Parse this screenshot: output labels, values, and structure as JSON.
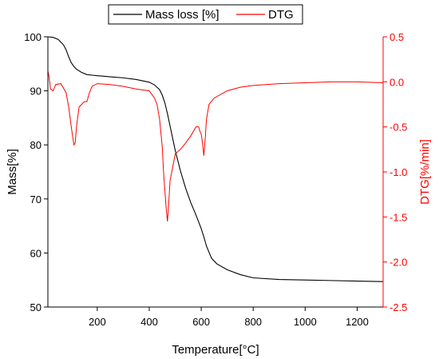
{
  "chart_data": {
    "type": "line",
    "xlabel": "Temperature[°C]",
    "x_ticks": [
      200,
      400,
      600,
      800,
      1000,
      1200
    ],
    "xlim": [
      10,
      1300
    ],
    "left_axis": {
      "label": "Mass[%]",
      "ylim": [
        50,
        100
      ],
      "ticks": [
        50,
        60,
        70,
        80,
        90,
        100
      ],
      "color": "#000000"
    },
    "right_axis": {
      "label": "DTG[%/min]",
      "ylim": [
        -2.5,
        0.5
      ],
      "ticks": [
        -2.5,
        -2.0,
        -1.5,
        -1.0,
        -0.5,
        0.0,
        0.5
      ],
      "tick_labels": [
        "-2.5",
        "-2.0",
        "-1.5",
        "-1.0",
        "-0.5",
        "0.0",
        "0.5"
      ],
      "color": "#ff0000"
    },
    "legend_position": "top-center",
    "grid": false,
    "series": [
      {
        "name": "Mass loss [%]",
        "axis": "left",
        "color": "#000000",
        "x": [
          10,
          30,
          50,
          70,
          80,
          90,
          100,
          110,
          120,
          140,
          160,
          180,
          200,
          250,
          300,
          350,
          400,
          420,
          440,
          450,
          460,
          470,
          480,
          500,
          520,
          540,
          560,
          580,
          600,
          610,
          620,
          640,
          660,
          700,
          750,
          800,
          900,
          1000,
          1100,
          1200,
          1300
        ],
        "y": [
          100,
          99.9,
          99.5,
          98.5,
          97.6,
          96.3,
          95.2,
          94.5,
          94.0,
          93.4,
          93.0,
          92.9,
          92.8,
          92.6,
          92.4,
          92.1,
          91.6,
          91.1,
          90.2,
          89.2,
          87.8,
          85.8,
          83.5,
          79.0,
          75.2,
          72.0,
          69.3,
          67.0,
          64.5,
          63.0,
          61.3,
          59.0,
          58.0,
          56.9,
          56.0,
          55.4,
          55.1,
          55.0,
          54.9,
          54.8,
          54.7
        ]
      },
      {
        "name": "DTG",
        "axis": "right",
        "color": "#ff0000",
        "x": [
          10,
          15,
          20,
          30,
          40,
          60,
          80,
          90,
          100,
          110,
          115,
          120,
          130,
          140,
          150,
          160,
          170,
          180,
          200,
          250,
          300,
          350,
          400,
          420,
          430,
          440,
          450,
          455,
          460,
          465,
          470,
          475,
          480,
          490,
          500,
          520,
          540,
          560,
          580,
          590,
          595,
          600,
          605,
          610,
          615,
          620,
          630,
          650,
          700,
          750,
          800,
          900,
          1000,
          1100,
          1200,
          1300
        ],
        "y": [
          0.12,
          0.05,
          -0.08,
          -0.1,
          -0.03,
          -0.02,
          -0.12,
          -0.28,
          -0.5,
          -0.7,
          -0.68,
          -0.5,
          -0.28,
          -0.25,
          -0.22,
          -0.22,
          -0.12,
          -0.05,
          -0.02,
          -0.03,
          -0.05,
          -0.08,
          -0.1,
          -0.18,
          -0.25,
          -0.42,
          -0.72,
          -1.0,
          -1.2,
          -1.4,
          -1.55,
          -1.35,
          -1.1,
          -0.95,
          -0.8,
          -0.75,
          -0.68,
          -0.6,
          -0.5,
          -0.5,
          -0.55,
          -0.58,
          -0.68,
          -0.82,
          -0.65,
          -0.42,
          -0.25,
          -0.18,
          -0.1,
          -0.06,
          -0.04,
          -0.02,
          -0.01,
          0.0,
          0.0,
          -0.01
        ]
      }
    ]
  }
}
